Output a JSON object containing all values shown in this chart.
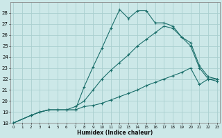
{
  "background_color": "#cce8e8",
  "grid_color": "#aacfcf",
  "line_color": "#1a6e6a",
  "x_label": "Humidex (Indice chaleur)",
  "ylim": [
    18,
    29
  ],
  "xlim": [
    0,
    23
  ],
  "yticks": [
    18,
    19,
    20,
    21,
    22,
    23,
    24,
    25,
    26,
    27,
    28
  ],
  "xticks": [
    0,
    1,
    2,
    3,
    4,
    5,
    6,
    7,
    8,
    9,
    10,
    11,
    12,
    13,
    14,
    15,
    16,
    17,
    18,
    19,
    20,
    21,
    22,
    23
  ],
  "series": [
    {
      "x": [
        0,
        2,
        3,
        4,
        5,
        6,
        7,
        8,
        9,
        10,
        11,
        12,
        13,
        14,
        15,
        16,
        17,
        18,
        19,
        20,
        21,
        22,
        23
      ],
      "y": [
        18,
        18.7,
        19.0,
        19.2,
        19.2,
        19.2,
        19.2,
        21.3,
        23.1,
        24.8,
        26.6,
        28.3,
        27.5,
        28.2,
        28.2,
        27.1,
        27.1,
        26.8,
        25.8,
        25.3,
        23.2,
        22.2,
        22.0
      ]
    },
    {
      "x": [
        0,
        2,
        3,
        4,
        5,
        6,
        7,
        8,
        9,
        10,
        11,
        12,
        13,
        14,
        15,
        16,
        17,
        18,
        19,
        20,
        21,
        22,
        23
      ],
      "y": [
        18,
        18.7,
        19.0,
        19.2,
        19.2,
        19.2,
        19.5,
        20.0,
        21.0,
        22.0,
        22.8,
        23.5,
        24.2,
        25.0,
        25.6,
        26.2,
        26.8,
        26.6,
        25.8,
        25.0,
        23.0,
        22.0,
        21.8
      ]
    },
    {
      "x": [
        0,
        2,
        3,
        4,
        5,
        6,
        7,
        8,
        9,
        10,
        11,
        12,
        13,
        14,
        15,
        16,
        17,
        18,
        19,
        20,
        21,
        22,
        23
      ],
      "y": [
        18,
        18.7,
        19.0,
        19.2,
        19.2,
        19.2,
        19.2,
        19.5,
        19.6,
        19.8,
        20.1,
        20.4,
        20.7,
        21.0,
        21.4,
        21.7,
        22.0,
        22.3,
        22.6,
        23.0,
        21.5,
        22.0,
        22.0
      ]
    }
  ]
}
